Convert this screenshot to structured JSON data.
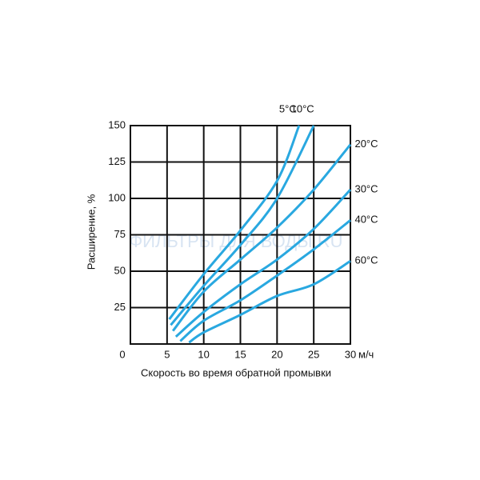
{
  "chart_data": {
    "type": "line",
    "xlabel": "Скорость во время обратной промывки",
    "ylabel": "Расширение, %",
    "x_unit": "м/ч",
    "watermark": "ФИЛЬТРЫ ДЛЯ ВОДЫ.RU",
    "xlim": [
      0,
      30
    ],
    "xticks": [
      0,
      5,
      10,
      15,
      20,
      25,
      30
    ],
    "ylim": [
      0,
      150
    ],
    "yticks": [
      25,
      50,
      75,
      100,
      125,
      150
    ],
    "grid": true,
    "series": [
      {
        "name": "5°C",
        "color": "#29a8e0",
        "x": [
          5.3,
          10,
          15,
          20,
          23
        ],
        "values": [
          17,
          48,
          78,
          112,
          150
        ]
      },
      {
        "name": "10°C",
        "color": "#29a8e0",
        "x": [
          5.5,
          10,
          15,
          20,
          25
        ],
        "values": [
          13,
          40,
          68,
          100,
          150
        ]
      },
      {
        "name": "20°C",
        "color": "#29a8e0",
        "x": [
          5.8,
          10,
          15,
          20,
          25,
          30
        ],
        "values": [
          9,
          36,
          58,
          80,
          106,
          137
        ]
      },
      {
        "name": "30°C",
        "color": "#29a8e0",
        "x": [
          6.2,
          10,
          15,
          20,
          25,
          30
        ],
        "values": [
          5,
          22,
          41,
          58,
          79,
          106
        ]
      },
      {
        "name": "40°C",
        "color": "#29a8e0",
        "x": [
          6.8,
          10,
          15,
          20,
          25,
          30
        ],
        "values": [
          2,
          16,
          30,
          47,
          65,
          85
        ]
      },
      {
        "name": "60°C",
        "color": "#29a8e0",
        "x": [
          8,
          10,
          15,
          20,
          25,
          30
        ],
        "values": [
          1,
          8,
          20,
          33,
          41,
          57
        ]
      }
    ]
  }
}
